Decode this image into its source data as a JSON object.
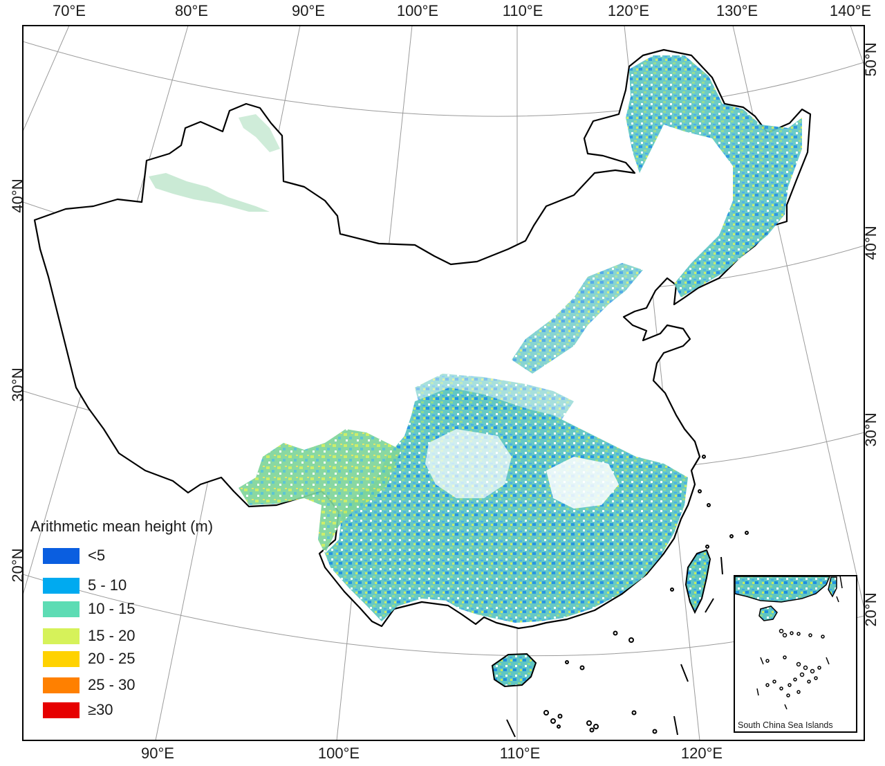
{
  "map": {
    "top_lon_labels": [
      "70°E",
      "80°E",
      "90°E",
      "100°E",
      "110°E",
      "120°E",
      "130°E",
      "140°E"
    ],
    "bottom_lon_labels": [
      "90°E",
      "100°E",
      "110°E",
      "120°E"
    ],
    "left_lat_labels": [
      "40°N",
      "30°N",
      "20°N"
    ],
    "right_lat_labels": [
      "50°N",
      "40°N",
      "30°N",
      "20°N"
    ]
  },
  "legend": {
    "title": "Arithmetic mean height (m)",
    "classes": [
      {
        "label": "<5",
        "color": "#0a5ee0"
      },
      {
        "label": "5 - 10",
        "color": "#00aaf0"
      },
      {
        "label": "10 - 15",
        "color": "#5ddcb4"
      },
      {
        "label": "15 - 20",
        "color": "#d6f25a"
      },
      {
        "label": "20 - 25",
        "color": "#ffd200"
      },
      {
        "label": "25 - 30",
        "color": "#ff8000"
      },
      {
        "label": "≥30",
        "color": "#e60000"
      }
    ]
  },
  "inset": {
    "label": "South China Sea Islands"
  },
  "colors": {
    "frame": "#000000",
    "graticule": "#9a9a9a",
    "border": "#000000"
  }
}
